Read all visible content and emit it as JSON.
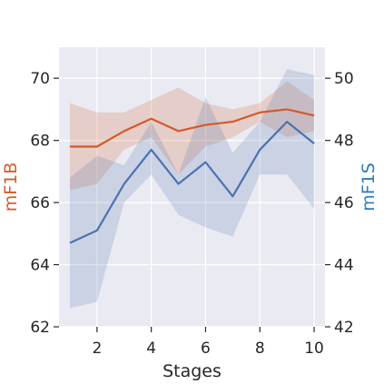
{
  "chart_data": {
    "type": "line",
    "xlabel": "Stages",
    "ylabel_left": "mF1B",
    "ylabel_right": "mF1S",
    "x": [
      1,
      2,
      3,
      4,
      5,
      6,
      7,
      8,
      9,
      10
    ],
    "xlim": [
      0.6,
      10.4
    ],
    "xticks": [
      2,
      4,
      6,
      8,
      10
    ],
    "ylim_left": [
      62,
      71
    ],
    "yticks_left": [
      62,
      64,
      66,
      68,
      70
    ],
    "ylim_right": [
      42,
      51
    ],
    "yticks_right": [
      42,
      44,
      46,
      48,
      50
    ],
    "grid": true,
    "series": [
      {
        "axis": "left",
        "color": "#d45a2a",
        "values": [
          67.8,
          67.8,
          68.3,
          68.7,
          68.3,
          68.5,
          68.6,
          68.9,
          69.0,
          68.8
        ],
        "lower": [
          66.4,
          66.6,
          67.7,
          68.1,
          66.9,
          67.8,
          68.1,
          68.6,
          68.1,
          68.3
        ],
        "upper": [
          69.2,
          68.9,
          68.9,
          69.3,
          69.7,
          69.2,
          69.0,
          69.2,
          69.9,
          69.3
        ]
      },
      {
        "axis": "right",
        "color": "#4c72b0",
        "values": [
          44.7,
          45.1,
          46.6,
          47.7,
          46.6,
          47.3,
          46.2,
          47.7,
          48.6,
          47.9
        ],
        "lower": [
          42.6,
          42.8,
          46.0,
          46.9,
          45.6,
          45.2,
          44.9,
          46.9,
          46.9,
          45.8
        ],
        "upper": [
          46.8,
          47.5,
          47.2,
          48.6,
          46.9,
          49.4,
          47.6,
          48.6,
          50.3,
          50.1
        ]
      }
    ]
  }
}
